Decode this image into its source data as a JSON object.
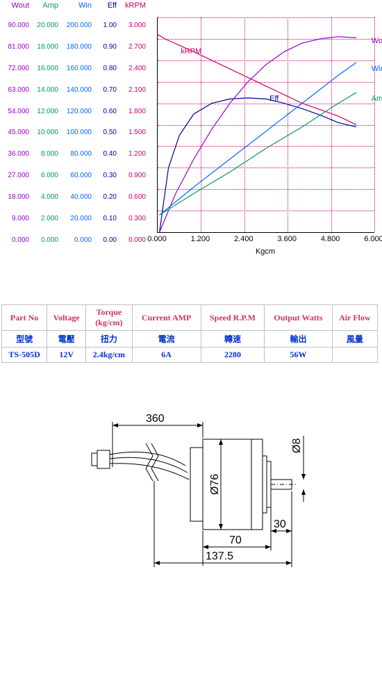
{
  "chart": {
    "background_color": "#ffffff",
    "grid_color": "#cc0066",
    "x": {
      "title": "Kgcm",
      "min": 0.0,
      "max": 6.0,
      "step": 1.2,
      "labels": [
        "0.000",
        "1.200",
        "2.400",
        "3.600",
        "4.800",
        "6.000"
      ]
    },
    "y_axes": [
      {
        "name": "Wout",
        "color": "#9900cc",
        "labels": [
          "90.000",
          "81.000",
          "72.000",
          "63.000",
          "54.000",
          "45.000",
          "36.000",
          "27.000",
          "18.000",
          "9.000",
          "0.000"
        ]
      },
      {
        "name": "Amp",
        "color": "#009966",
        "labels": [
          "20.000",
          "18.000",
          "16.000",
          "14.000",
          "12.000",
          "10.000",
          "8.000",
          "6.000",
          "4.000",
          "2.000",
          "0.000"
        ]
      },
      {
        "name": "Win",
        "color": "#0066ff",
        "labels": [
          "200.000",
          "180.000",
          "160.000",
          "140.000",
          "120.000",
          "100.000",
          "80.000",
          "60.000",
          "40.000",
          "20.000",
          "0.000"
        ]
      },
      {
        "name": "Eff",
        "color": "#000099",
        "labels": [
          "1.00",
          "0.90",
          "0.80",
          "0.70",
          "0.60",
          "0.50",
          "0.40",
          "0.30",
          "0.20",
          "0.10",
          "0.00"
        ]
      },
      {
        "name": "kRPM",
        "color": "#cc0066",
        "labels": [
          "3.000",
          "2.700",
          "2.400",
          "2.100",
          "1.800",
          "1.500",
          "1.200",
          "0.900",
          "0.600",
          "0.300",
          "0.000"
        ]
      }
    ],
    "series": [
      {
        "name": "kRPM",
        "color": "#cc0066",
        "label_pos": {
          "x": 0.1,
          "y": 0.84
        },
        "points": [
          [
            0,
            0.92
          ],
          [
            0.2,
            0.9
          ],
          [
            1.0,
            0.84
          ],
          [
            2.0,
            0.76
          ],
          [
            3.0,
            0.68
          ],
          [
            4.0,
            0.6
          ],
          [
            5.0,
            0.54
          ],
          [
            5.5,
            0.5
          ]
        ]
      },
      {
        "name": "Eff",
        "color": "#000099",
        "label_pos": {
          "x": 0.51,
          "y": 0.62
        },
        "points": [
          [
            0.05,
            0.0
          ],
          [
            0.3,
            0.3
          ],
          [
            0.6,
            0.45
          ],
          [
            1.0,
            0.55
          ],
          [
            1.5,
            0.6
          ],
          [
            2.0,
            0.62
          ],
          [
            2.5,
            0.625
          ],
          [
            3.0,
            0.62
          ],
          [
            3.5,
            0.6
          ],
          [
            4.0,
            0.575
          ],
          [
            4.5,
            0.545
          ],
          [
            5.0,
            0.51
          ],
          [
            5.5,
            0.49
          ]
        ]
      },
      {
        "name": "Wout",
        "color": "#9900cc",
        "label_pos": {
          "x": 0.98,
          "y": 0.89
        },
        "points": [
          [
            0.05,
            0.0
          ],
          [
            0.5,
            0.18
          ],
          [
            1.0,
            0.34
          ],
          [
            1.5,
            0.48
          ],
          [
            2.0,
            0.6
          ],
          [
            2.5,
            0.7
          ],
          [
            3.0,
            0.78
          ],
          [
            3.5,
            0.84
          ],
          [
            4.0,
            0.88
          ],
          [
            4.5,
            0.9
          ],
          [
            5.0,
            0.91
          ],
          [
            5.5,
            0.905
          ]
        ]
      },
      {
        "name": "Win",
        "color": "#0066ff",
        "label_pos": {
          "x": 0.98,
          "y": 0.76
        },
        "points": [
          [
            0.05,
            0.08
          ],
          [
            1.0,
            0.21
          ],
          [
            2.0,
            0.34
          ],
          [
            3.0,
            0.47
          ],
          [
            4.0,
            0.6
          ],
          [
            5.0,
            0.73
          ],
          [
            5.5,
            0.79
          ]
        ]
      },
      {
        "name": "Amp",
        "color": "#009966",
        "label_pos": {
          "x": 0.98,
          "y": 0.62
        },
        "points": [
          [
            0.05,
            0.08
          ],
          [
            1.0,
            0.18
          ],
          [
            2.0,
            0.28
          ],
          [
            3.0,
            0.39
          ],
          [
            4.0,
            0.49
          ],
          [
            5.0,
            0.6
          ],
          [
            5.5,
            0.65
          ]
        ]
      }
    ]
  },
  "table": {
    "columns_en": [
      "Part No",
      "Voltage",
      "Torque (kg/cm)",
      "Current AMP",
      "Speed R.P.M",
      "Output Watts",
      "Air Flow"
    ],
    "columns_cn": [
      "型號",
      "電壓",
      "扭力",
      "電流",
      "轉速",
      "輸出",
      "風量"
    ],
    "row": [
      "TS-505D",
      "12V",
      "2.4kg/cm",
      "6A",
      "2280",
      "56W",
      ""
    ]
  },
  "drawing": {
    "dims": {
      "cable_len": "360",
      "body_dia": "Ø76",
      "shaft_dia": "Ø8",
      "shaft_len": "30",
      "front_len": "70",
      "total_len": "137.5"
    },
    "line_color": "#000000",
    "line_width": 1
  }
}
